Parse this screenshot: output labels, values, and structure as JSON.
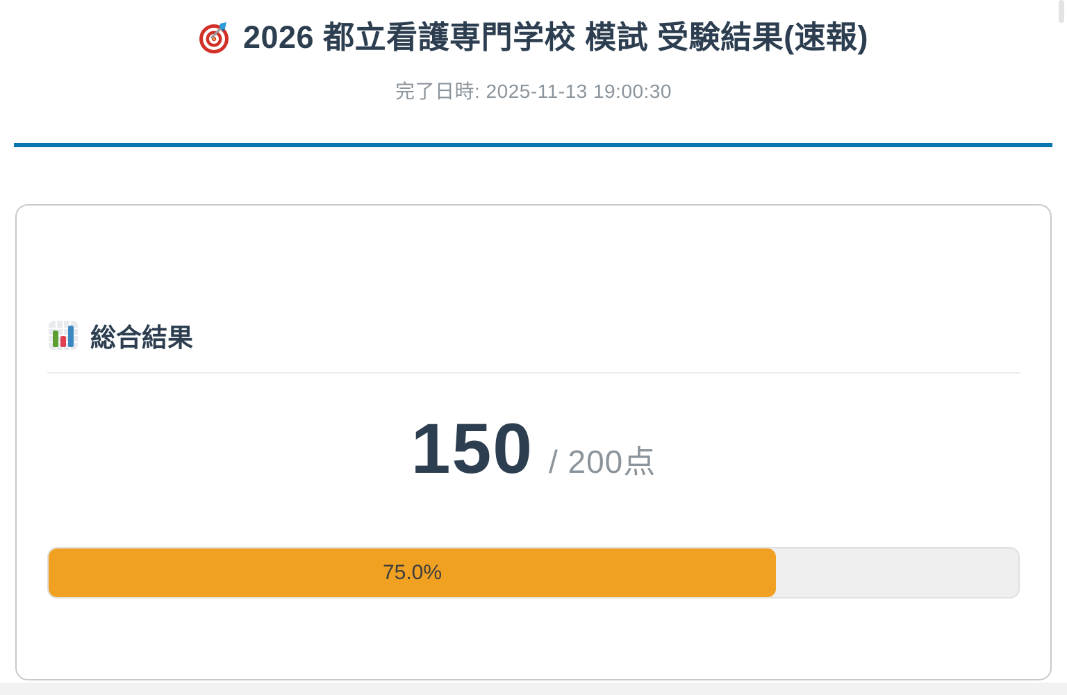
{
  "page": {
    "title": "2026 都立看護専門学校 模試 受験結果(速報)",
    "title_icon": "target-icon",
    "completed_datetime": "完了日時: 2025-11-13 19:00:30"
  },
  "summary": {
    "section_title": "総合結果",
    "section_icon": "bar-chart-icon",
    "score": "150",
    "max_label": "/ 200点",
    "progress_label": "75.0%",
    "progress_percent": 75.0
  },
  "colors": {
    "accent_blue": "#0a76b0",
    "progress_orange": "#f0a122",
    "heading_text": "#2c3e50",
    "muted_text": "#8b949b",
    "card_border": "#c9c9c9",
    "track_background": "#efefef"
  }
}
